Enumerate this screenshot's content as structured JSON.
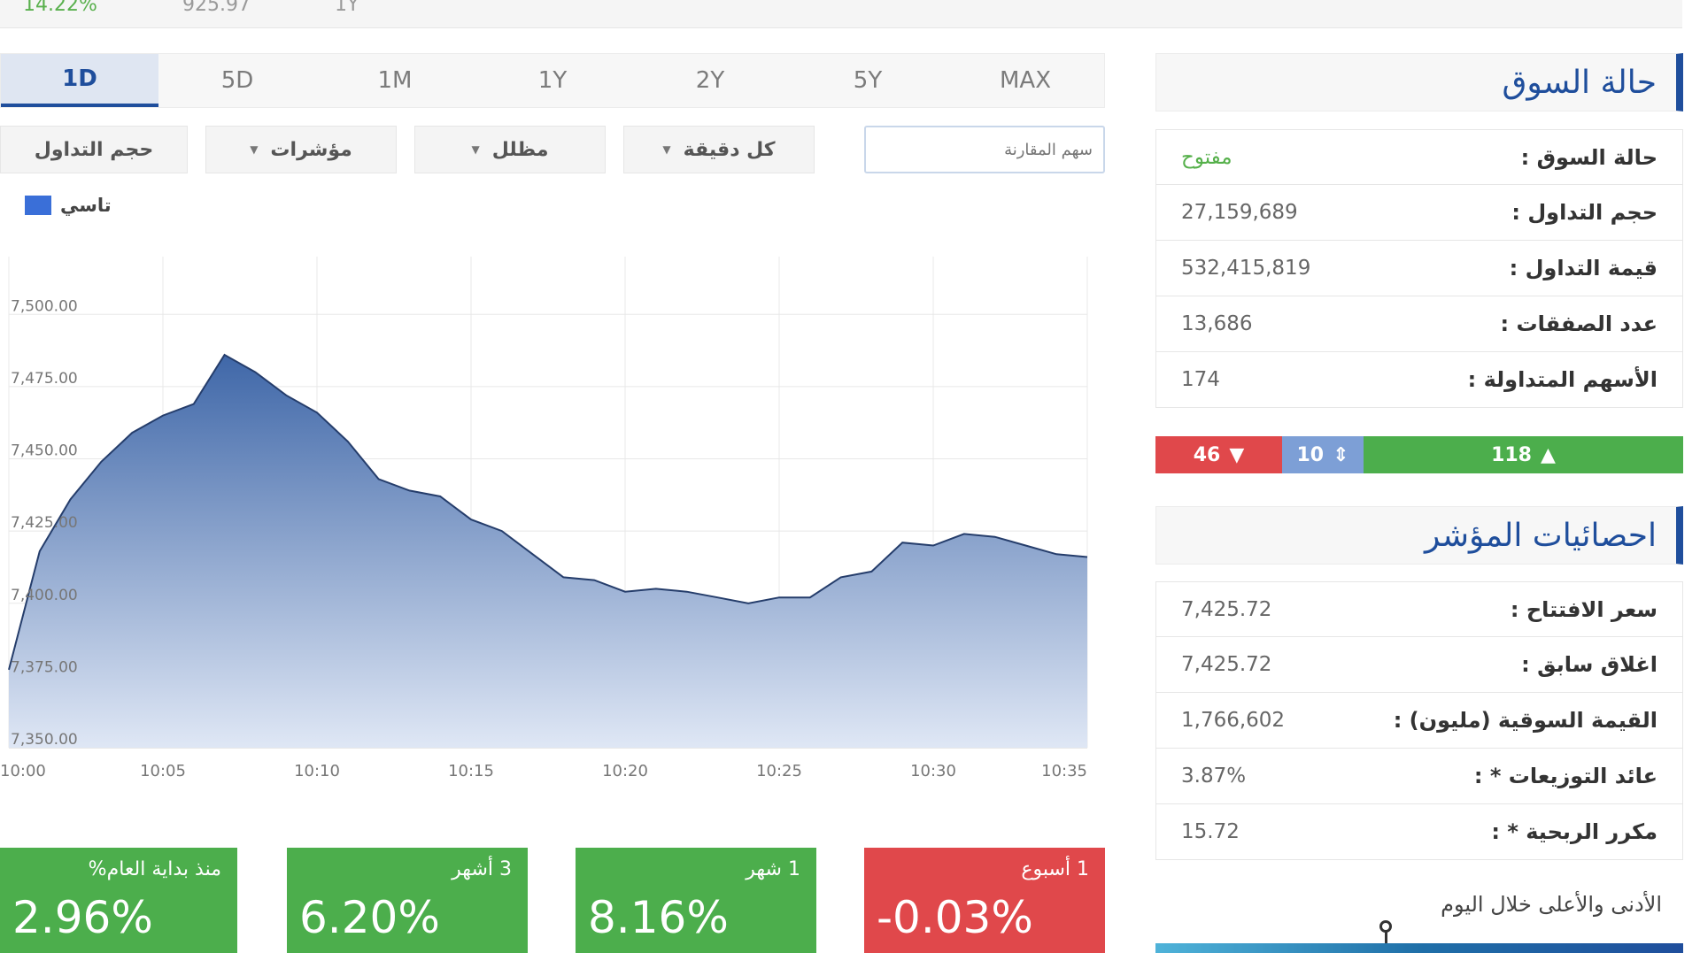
{
  "top_strip": {
    "v1": "14.22%",
    "v2": "925.97",
    "v3": "1Y"
  },
  "tabs": [
    {
      "label": "1D",
      "active": true
    },
    {
      "label": "5D"
    },
    {
      "label": "1M"
    },
    {
      "label": "1Y"
    },
    {
      "label": "2Y"
    },
    {
      "label": "5Y"
    },
    {
      "label": "MAX"
    }
  ],
  "controls": {
    "volume_label": "حجم التداول",
    "indicators_label": "مؤشرات",
    "shade_label": "مظلل",
    "interval_label": "كل دقيقة",
    "compare_placeholder": "سهم المقارنة"
  },
  "legend": {
    "label": "تاسي",
    "color": "#3a6fd8"
  },
  "chart_data": {
    "type": "area",
    "series": [
      {
        "name": "تاسي",
        "x": [
          "10:00",
          "10:01",
          "10:02",
          "10:03",
          "10:04",
          "10:05",
          "10:06",
          "10:07",
          "10:08",
          "10:09",
          "10:10",
          "10:11",
          "10:12",
          "10:13",
          "10:14",
          "10:15",
          "10:16",
          "10:17",
          "10:18",
          "10:19",
          "10:20",
          "10:21",
          "10:22",
          "10:23",
          "10:24",
          "10:25",
          "10:26",
          "10:27",
          "10:28",
          "10:29",
          "10:30",
          "10:31",
          "10:32",
          "10:33",
          "10:34",
          "10:35"
        ],
        "values": [
          7377,
          7418,
          7436,
          7449,
          7459,
          7465,
          7469,
          7486,
          7480,
          7472,
          7466,
          7456,
          7443,
          7439,
          7437,
          7429,
          7425,
          7417,
          7409,
          7408,
          7404,
          7405,
          7404,
          7402,
          7400,
          7402,
          7402,
          7409,
          7411,
          7421,
          7420,
          7424,
          7423,
          7420,
          7417,
          7416
        ]
      }
    ],
    "x_ticks": [
      "10:00",
      "10:05",
      "10:10",
      "10:15",
      "10:20",
      "10:25",
      "10:30",
      "10:35"
    ],
    "y_ticks": [
      "7,350.00",
      "7,375.00",
      "7,400.00",
      "7,425.00",
      "7,450.00",
      "7,475.00",
      "7,500.00"
    ],
    "ylim": [
      7350,
      7520
    ],
    "grid": true,
    "fill_color": "#3f67a8"
  },
  "performance": [
    {
      "label": "منذ بداية العام%",
      "value": "2.96%",
      "status": "up"
    },
    {
      "label": "3 أشهر",
      "value": "6.20%",
      "status": "up"
    },
    {
      "label": "1 شهر",
      "value": "8.16%",
      "status": "up"
    },
    {
      "label": "1 أسبوع",
      "value": "-0.03%",
      "status": "down"
    }
  ],
  "market_status": {
    "title": "حالة السوق",
    "rows": [
      {
        "label": "حالة السوق :",
        "value": "مفتوح"
      },
      {
        "label": "حجم التداول :",
        "value": "27,159,689"
      },
      {
        "label": "قيمة التداول :",
        "value": "532,415,819"
      },
      {
        "label": "عدد الصفقات :",
        "value": "13,686"
      },
      {
        "label": "الأسهم المتداولة :",
        "value": "174"
      }
    ]
  },
  "breadth": {
    "declining": "46",
    "unchanged": "10",
    "advancing": "118"
  },
  "index_stats": {
    "title": "احصائيات المؤشر",
    "rows": [
      {
        "label": "سعر الافتتاح :",
        "value": "7,425.72"
      },
      {
        "label": "اغلاق سابق :",
        "value": "7,425.72"
      },
      {
        "label": "القيمة السوقية (مليون) :",
        "value": "1,766,602"
      },
      {
        "label": "عائد التوزيعات * :",
        "value": "3.87%"
      },
      {
        "label": "مكرر الربحية * :",
        "value": "15.72"
      }
    ]
  },
  "day_range": {
    "title": "الأدنى والأعلى خلال اليوم"
  }
}
